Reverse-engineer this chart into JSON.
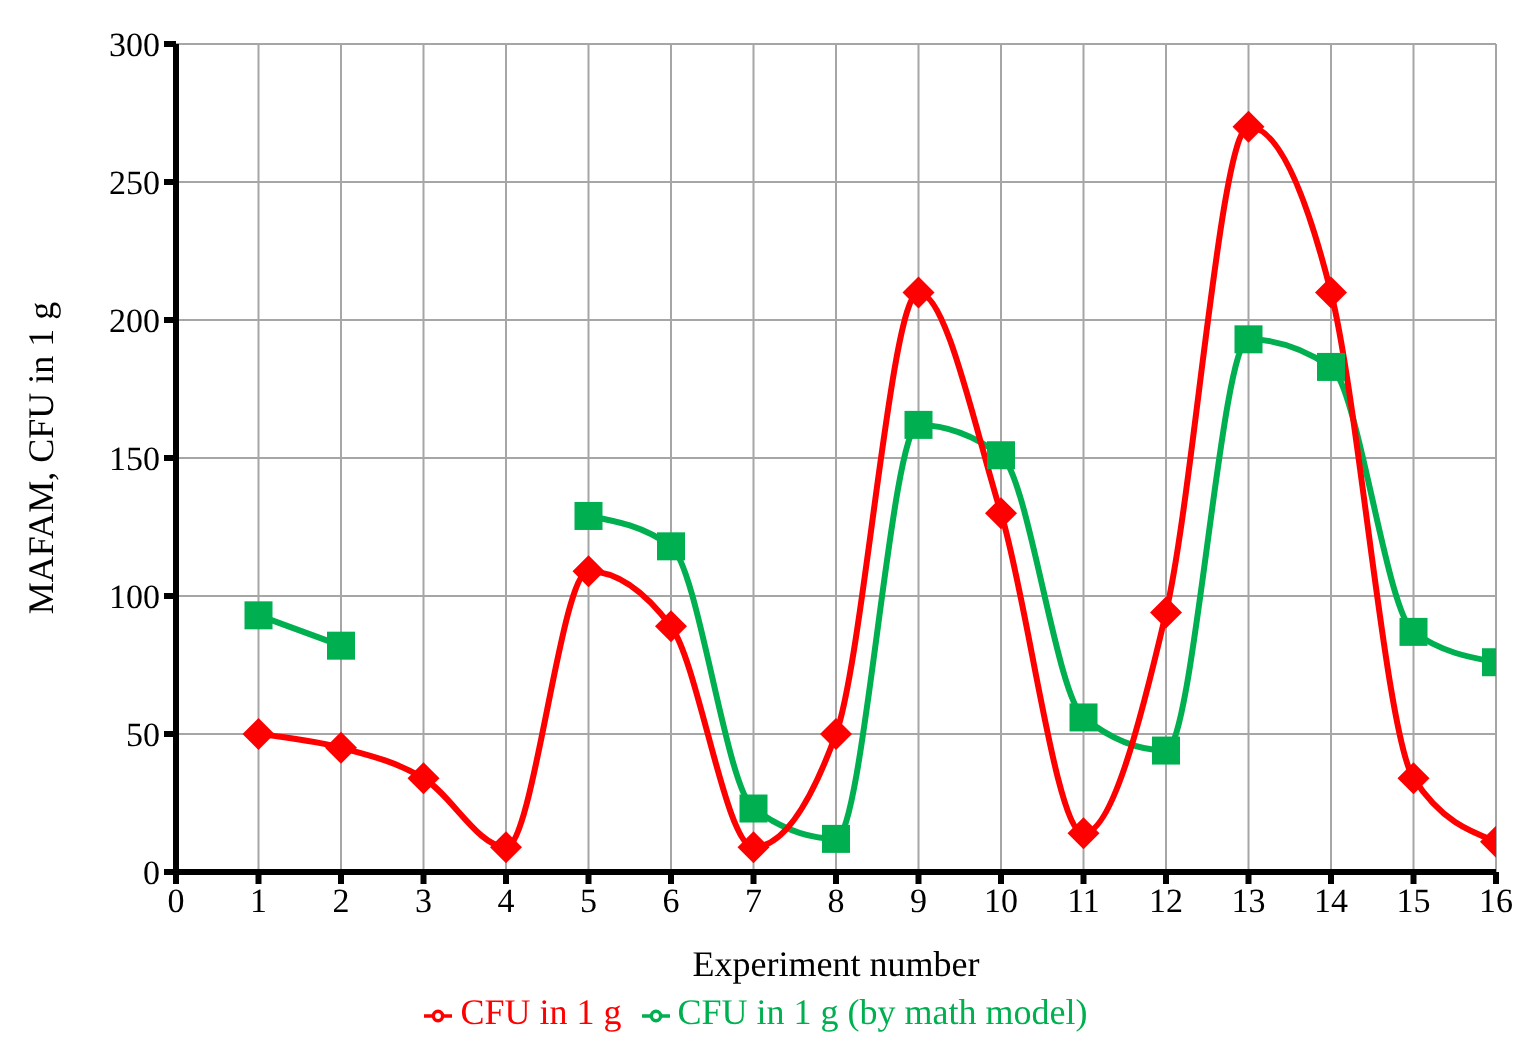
{
  "chart_data": {
    "type": "line",
    "xlabel": "Experiment number",
    "ylabel": "MAFAM, CFU in 1 g",
    "x": [
      1,
      2,
      3,
      4,
      5,
      6,
      7,
      8,
      9,
      10,
      11,
      12,
      13,
      14,
      15,
      16
    ],
    "series": [
      {
        "name": "CFU in 1 g (by math model)",
        "color": "#00b050",
        "marker": "square",
        "values": [
          93,
          82,
          null,
          null,
          129,
          118,
          23,
          12,
          162,
          151,
          56,
          44,
          193,
          183,
          87,
          76
        ]
      },
      {
        "name": "CFU in 1 g",
        "color": "#ff0000",
        "marker": "diamond",
        "values": [
          50,
          45,
          34,
          9,
          109,
          89,
          9,
          50,
          210,
          130,
          14,
          94,
          270,
          210,
          34,
          11
        ]
      }
    ],
    "xlim": [
      0,
      16
    ],
    "xticks": [
      0,
      1,
      2,
      3,
      4,
      5,
      6,
      7,
      8,
      9,
      10,
      11,
      12,
      13,
      14,
      15,
      16
    ],
    "ylim": [
      0,
      300
    ],
    "yticks": [
      0,
      50,
      100,
      150,
      200,
      250,
      300
    ],
    "grid": true,
    "legend": "bottom",
    "line_style": "solid"
  }
}
